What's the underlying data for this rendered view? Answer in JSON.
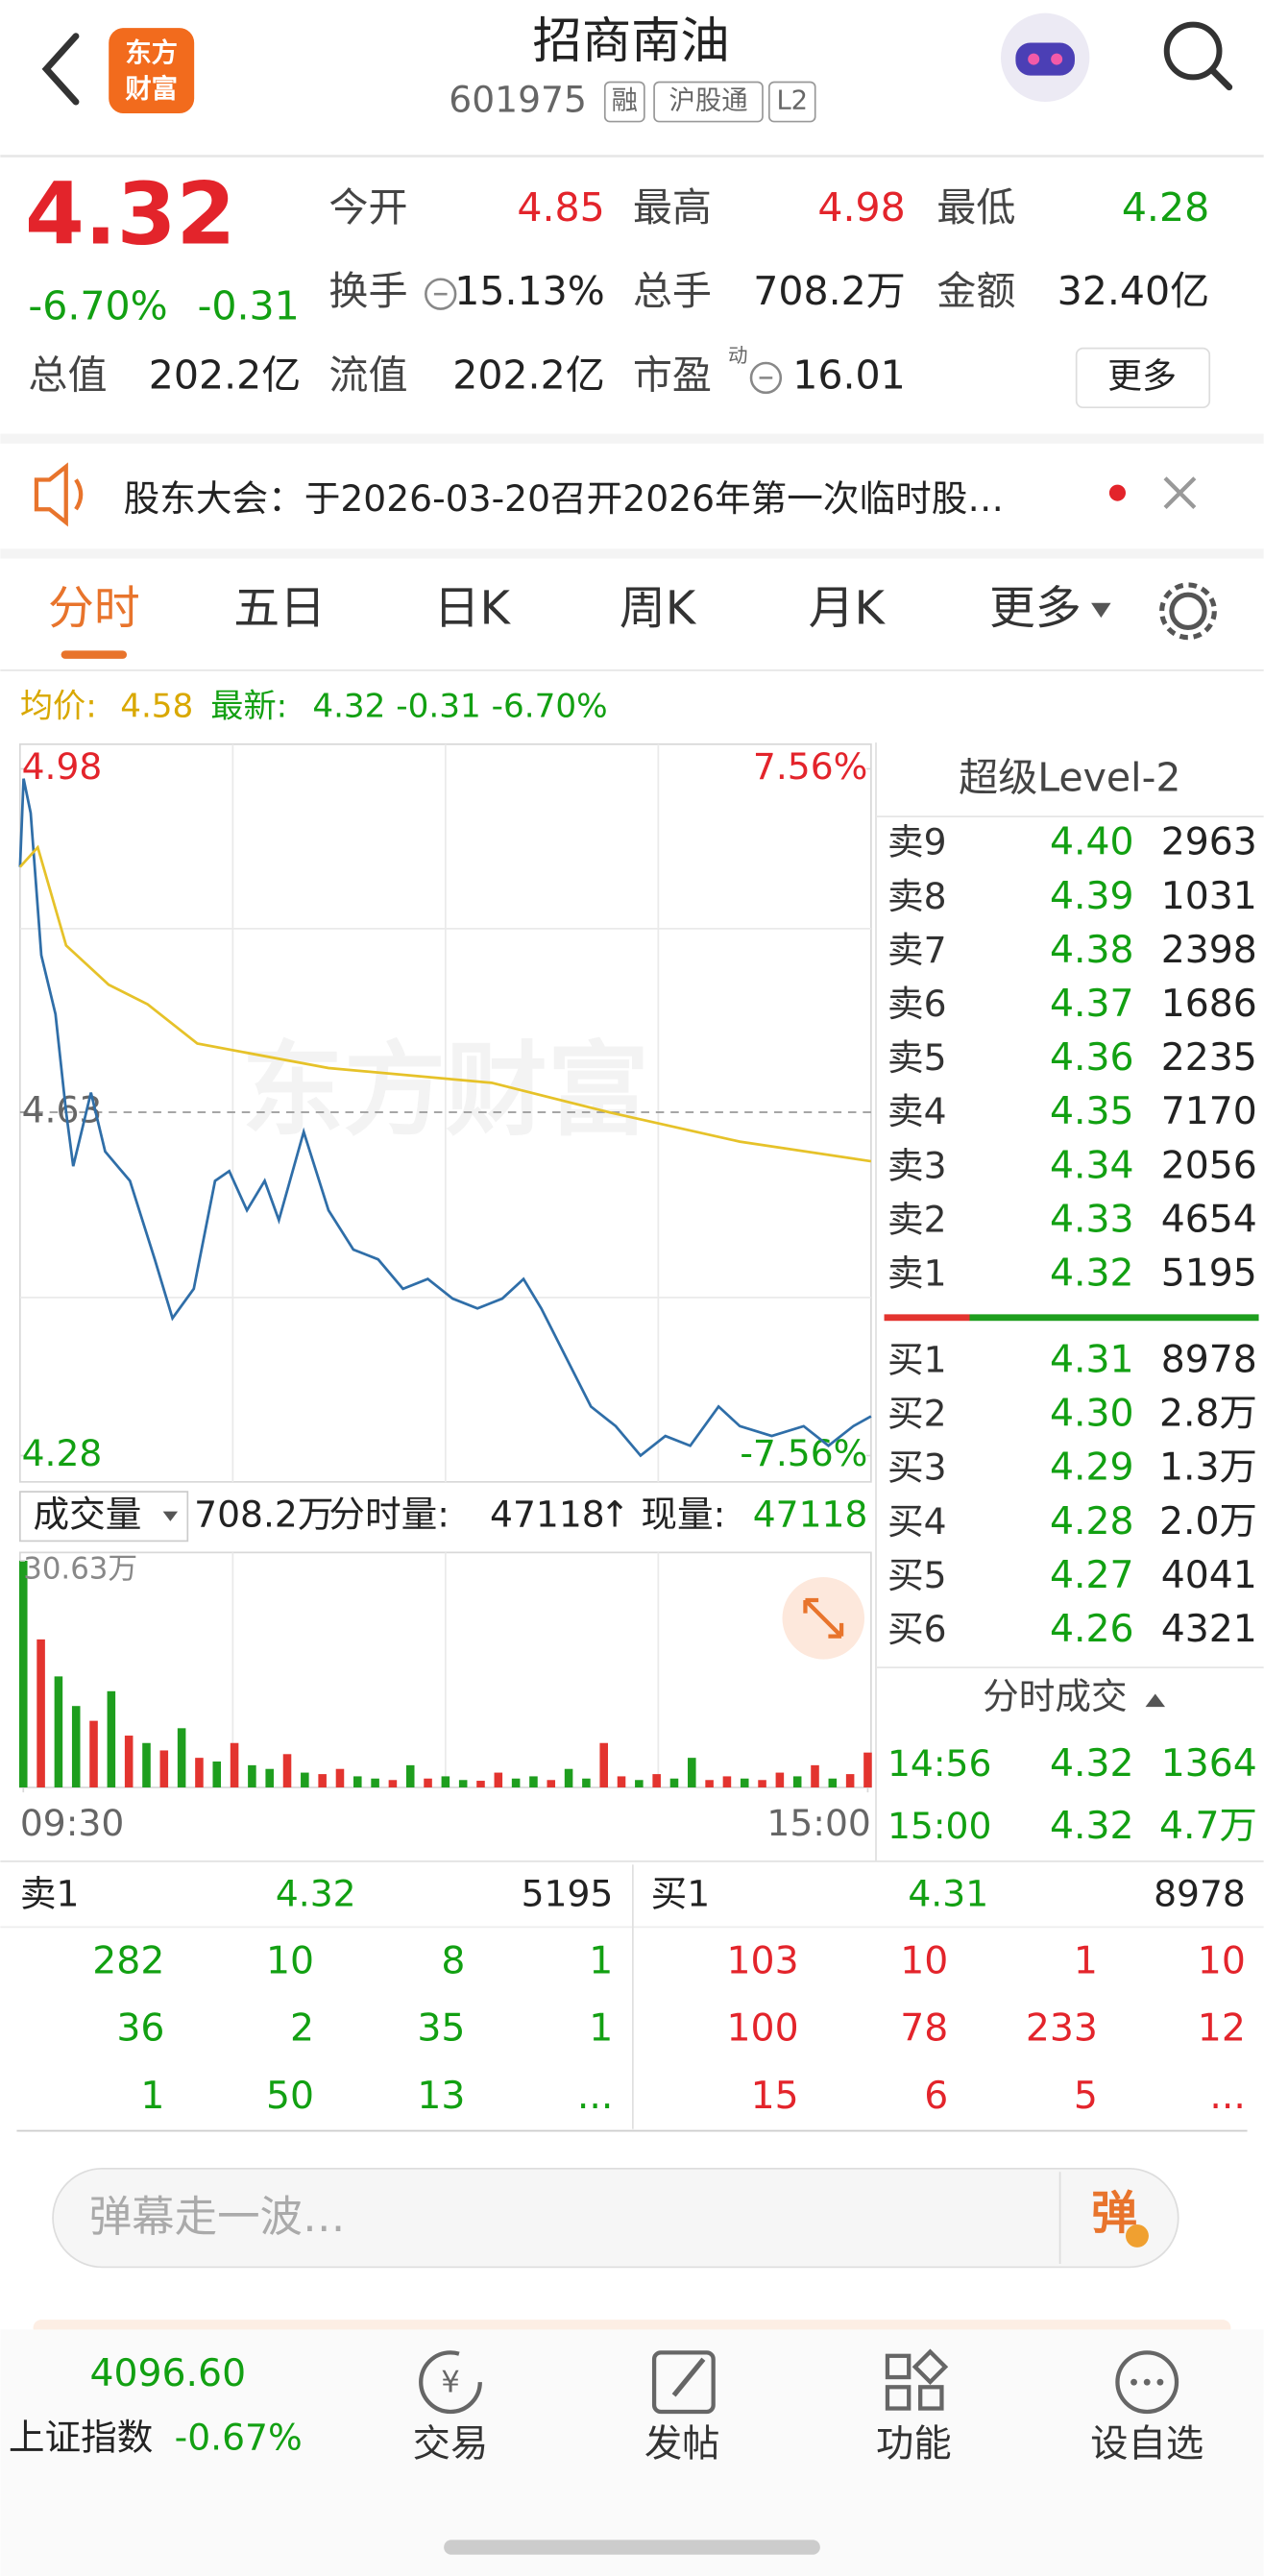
{
  "header": {
    "title": "招商南油",
    "code": "601975",
    "tags": [
      "融",
      "沪股通",
      "L2"
    ],
    "logo": [
      "东方",
      "财富"
    ]
  },
  "quote": {
    "price": "4.32",
    "change_pct": "-6.70%",
    "change": "-0.31",
    "fields": [
      {
        "label": "今开",
        "value": "4.85"
      },
      {
        "label": "最高",
        "value": "4.98"
      },
      {
        "label": "最低",
        "value": "4.28"
      },
      {
        "label": "换手",
        "value": "15.13%"
      },
      {
        "label": "总手",
        "value": "708.2万"
      },
      {
        "label": "金额",
        "value": "32.40亿"
      },
      {
        "label": "总值",
        "value": "202.2亿"
      },
      {
        "label": "流值",
        "value": "202.2亿"
      },
      {
        "label": "市盈",
        "value": "16.01"
      }
    ],
    "pe_sup": "动",
    "more": "更多"
  },
  "notice": "股东大会：于2026-03-20召开2026年第一次临时股…",
  "tabs": [
    "分时",
    "五日",
    "日K",
    "周K",
    "月K",
    "更多"
  ],
  "summary": {
    "avg_label": "均价:",
    "avg": "4.58",
    "last_label": "最新:",
    "last": "4.32 -0.31 -6.70%"
  },
  "watermark": "东方财富",
  "chart_data": [
    {
      "type": "line",
      "xlim": [
        0,
        240
      ],
      "ylim": [
        4.28,
        4.98
      ],
      "yticks": [
        4.98,
        4.63,
        4.28
      ],
      "y2lim": [
        -7.56,
        7.56
      ],
      "y2ticks": [
        {
          "value": 7.56,
          "label": "7.56%"
        },
        {
          "value": -7.56,
          "label": "-7.56%"
        }
      ],
      "grid": true,
      "series": [
        {
          "color": "#2f6ea8",
          "x": [
            0,
            1,
            3,
            6,
            10,
            13,
            15,
            20,
            24,
            31,
            38,
            43,
            49,
            55,
            59,
            64,
            69,
            73,
            80,
            87,
            94,
            101,
            108,
            115,
            122,
            129,
            136,
            142,
            147,
            154,
            161,
            168,
            175,
            182,
            189,
            197,
            203,
            212,
            221,
            228,
            235,
            240
          ],
          "values": [
            4.88,
            4.97,
            4.935,
            4.79,
            4.73,
            4.63,
            4.575,
            4.65,
            4.59,
            4.56,
            4.48,
            4.42,
            4.45,
            4.56,
            4.57,
            4.53,
            4.56,
            4.52,
            4.61,
            4.53,
            4.49,
            4.48,
            4.45,
            4.46,
            4.44,
            4.43,
            4.44,
            4.46,
            4.43,
            4.38,
            4.33,
            4.31,
            4.28,
            4.3,
            4.29,
            4.33,
            4.31,
            4.3,
            4.31,
            4.29,
            4.31,
            4.32
          ]
        },
        {
          "color": "#e6c229",
          "x": [
            0,
            5,
            13,
            25,
            36,
            50,
            87,
            133,
            166,
            203,
            240
          ],
          "values": [
            4.88,
            4.9,
            4.8,
            4.76,
            4.74,
            4.7,
            4.675,
            4.66,
            4.63,
            4.6,
            4.58
          ]
        }
      ]
    },
    {
      "type": "bar",
      "xlim": [
        0,
        240
      ],
      "ylim": [
        0,
        306300
      ],
      "yticks": [
        {
          "value": 306300,
          "label": "30.63万"
        }
      ],
      "xticks": [
        {
          "value": 0,
          "label": "09:30"
        },
        {
          "value": 240,
          "label": "15:00"
        }
      ],
      "x": [
        0,
        5,
        10,
        15,
        20,
        25,
        30,
        35,
        40,
        45,
        50,
        55,
        60,
        65,
        70,
        75,
        80,
        85,
        90,
        95,
        100,
        105,
        110,
        115,
        120,
        125,
        130,
        135,
        140,
        145,
        150,
        155,
        160,
        165,
        170,
        175,
        180,
        185,
        190,
        195,
        200,
        205,
        210,
        215,
        220,
        225,
        230,
        235,
        240
      ],
      "values": [
        306300,
        200000,
        150000,
        110000,
        90000,
        130000,
        70000,
        60000,
        50000,
        80000,
        40000,
        35000,
        60000,
        30000,
        25000,
        45000,
        20000,
        18000,
        25000,
        15000,
        12000,
        10000,
        30000,
        12000,
        15000,
        10000,
        9000,
        20000,
        12000,
        15000,
        10000,
        25000,
        12000,
        60000,
        15000,
        10000,
        18000,
        12000,
        40000,
        10000,
        15000,
        12000,
        10000,
        20000,
        15000,
        30000,
        12000,
        18000,
        47118
      ],
      "colors": [
        "#1e9e1e",
        "#e3342f",
        "#1e9e1e",
        "#1e9e1e",
        "#e3342f",
        "#1e9e1e",
        "#e3342f",
        "#1e9e1e",
        "#e3342f",
        "#1e9e1e",
        "#e3342f",
        "#1e9e1e",
        "#e3342f",
        "#1e9e1e",
        "#1e9e1e",
        "#e3342f",
        "#1e9e1e",
        "#e3342f",
        "#e3342f",
        "#1e9e1e",
        "#1e9e1e",
        "#e3342f",
        "#1e9e1e",
        "#e3342f",
        "#1e9e1e",
        "#1e9e1e",
        "#e3342f",
        "#e3342f",
        "#1e9e1e",
        "#1e9e1e",
        "#e3342f",
        "#1e9e1e",
        "#1e9e1e",
        "#e3342f",
        "#e3342f",
        "#1e9e1e",
        "#e3342f",
        "#1e9e1e",
        "#1e9e1e",
        "#e3342f",
        "#e3342f",
        "#1e9e1e",
        "#e3342f",
        "#e3342f",
        "#1e9e1e",
        "#e3342f",
        "#1e9e1e",
        "#e3342f",
        "#e3342f"
      ]
    }
  ],
  "volume_bar": {
    "selector": "成交量",
    "total": "708.2万",
    "tick_label": "分时量:",
    "tick": "47118",
    "arrow": "↑",
    "now_label": "现量:",
    "now": "47118"
  },
  "level2": {
    "title": "超级Level-2",
    "asks": [
      [
        "卖9",
        "4.40",
        "2963"
      ],
      [
        "卖8",
        "4.39",
        "1031"
      ],
      [
        "卖7",
        "4.38",
        "2398"
      ],
      [
        "卖6",
        "4.37",
        "1686"
      ],
      [
        "卖5",
        "4.36",
        "2235"
      ],
      [
        "卖4",
        "4.35",
        "7170"
      ],
      [
        "卖3",
        "4.34",
        "2056"
      ],
      [
        "卖2",
        "4.33",
        "4654"
      ],
      [
        "卖1",
        "4.32",
        "5195"
      ]
    ],
    "bids": [
      [
        "买1",
        "4.31",
        "8978"
      ],
      [
        "买2",
        "4.30",
        "2.8万"
      ],
      [
        "买3",
        "4.29",
        "1.3万"
      ],
      [
        "买4",
        "4.28",
        "2.0万"
      ],
      [
        "买5",
        "4.27",
        "4041"
      ],
      [
        "买6",
        "4.26",
        "4321"
      ]
    ],
    "trades_title": "分时成交",
    "trades": [
      [
        "14:56",
        "4.32",
        "1364"
      ],
      [
        "15:00",
        "4.32",
        "4.7万"
      ]
    ]
  },
  "depth": {
    "ask": [
      "卖1",
      "4.32",
      "5195"
    ],
    "bid": [
      "买1",
      "4.31",
      "8978"
    ],
    "ask_rows": [
      [
        "282",
        "10",
        "8",
        "1"
      ],
      [
        "36",
        "2",
        "35",
        "1"
      ],
      [
        "1",
        "50",
        "13",
        "..."
      ]
    ],
    "bid_rows": [
      [
        "103",
        "10",
        "1",
        "10"
      ],
      [
        "100",
        "78",
        "233",
        "12"
      ],
      [
        "15",
        "6",
        "5",
        "..."
      ]
    ]
  },
  "comment": {
    "placeholder": "弹幕走一波…",
    "button": "弹"
  },
  "footer": {
    "index_value": "4096.60",
    "index_name": "上证指数",
    "index_change": "-0.67%",
    "nav": [
      "交易",
      "发帖",
      "功能",
      "设自选"
    ]
  }
}
